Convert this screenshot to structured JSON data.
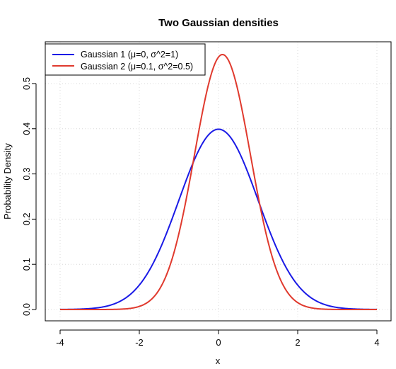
{
  "chart_data": {
    "type": "line",
    "title": "Two Gaussian densities",
    "xlabel": "x",
    "ylabel": "Probability Density",
    "xlim": [
      -4,
      4
    ],
    "ylim": [
      0,
      0.5642
    ],
    "x_ticks": [
      -4,
      -2,
      0,
      2,
      4
    ],
    "x_tick_labels": [
      "-4",
      "-2",
      "0",
      "2",
      "4"
    ],
    "y_ticks": [
      0.0,
      0.1,
      0.2,
      0.3,
      0.4,
      0.5
    ],
    "y_tick_labels": [
      "0.0",
      "0.1",
      "0.2",
      "0.3",
      "0.4",
      "0.5"
    ],
    "grid": true,
    "legend_position": "top-left",
    "series": [
      {
        "name": "Gaussian 1 (μ=0, σ^2=1)",
        "color": "#1a1ae6",
        "x": [
          -4.0,
          -3.5,
          -3.0,
          -2.5,
          -2.0,
          -1.5,
          -1.0,
          -0.5,
          0.0,
          0.5,
          1.0,
          1.5,
          2.0,
          2.5,
          3.0,
          3.5,
          4.0
        ],
        "y": [
          0.0001,
          0.0009,
          0.0044,
          0.0175,
          0.054,
          0.1295,
          0.242,
          0.3521,
          0.3989,
          0.3521,
          0.242,
          0.1295,
          0.054,
          0.0175,
          0.0044,
          0.0009,
          0.0001
        ]
      },
      {
        "name": "Gaussian 2 (μ=0.1, σ^2=0.5)",
        "color": "#e03a2e",
        "x": [
          -4.0,
          -3.5,
          -3.0,
          -2.5,
          -2.0,
          -1.5,
          -1.0,
          -0.5,
          0.0,
          0.1,
          0.5,
          1.0,
          1.5,
          2.0,
          2.5,
          3.0,
          3.5,
          4.0
        ],
        "y": [
          0.0,
          0.0,
          0.0,
          0.0001,
          0.0069,
          0.0435,
          0.1681,
          0.3912,
          0.5586,
          0.5642,
          0.4785,
          0.2515,
          0.0794,
          0.0152,
          0.0018,
          0.0001,
          0.0,
          0.0
        ]
      }
    ]
  }
}
